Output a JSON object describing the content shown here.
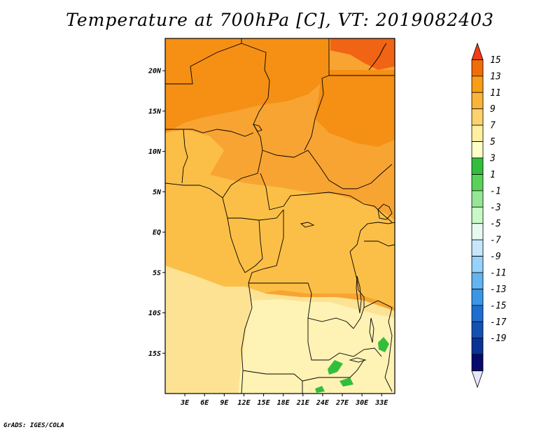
{
  "title": "Temperature at 700hPa [C], VT: 2019082403",
  "credit": "GrADS: IGES/COLA",
  "map": {
    "lon_range": [
      0,
      35
    ],
    "lat_range": [
      -20,
      24
    ],
    "lat_ticks": [
      {
        "value": 20,
        "label": "20N"
      },
      {
        "value": 15,
        "label": "15N"
      },
      {
        "value": 10,
        "label": "10N"
      },
      {
        "value": 5,
        "label": "5N"
      },
      {
        "value": 0,
        "label": "EQ"
      },
      {
        "value": -5,
        "label": "5S"
      },
      {
        "value": -10,
        "label": "10S"
      },
      {
        "value": -15,
        "label": "15S"
      }
    ],
    "lon_ticks": [
      {
        "value": 3,
        "label": "3E"
      },
      {
        "value": 6,
        "label": "6E"
      },
      {
        "value": 9,
        "label": "9E"
      },
      {
        "value": 12,
        "label": "12E"
      },
      {
        "value": 15,
        "label": "15E"
      },
      {
        "value": 18,
        "label": "18E"
      },
      {
        "value": 21,
        "label": "21E"
      },
      {
        "value": 24,
        "label": "24E"
      },
      {
        "value": 27,
        "label": "27E"
      },
      {
        "value": 30,
        "label": "30E"
      },
      {
        "value": 33,
        "label": "33E"
      }
    ]
  },
  "colorbar": {
    "labels": [
      "15",
      "13",
      "11",
      "9",
      "7",
      "5",
      "3",
      "1",
      "-1",
      "-3",
      "-5",
      "-7",
      "-9",
      "-11",
      "-13",
      "-15",
      "-17",
      "-19"
    ],
    "colors": [
      "#f03c14",
      "#f06e0a",
      "#f89e14",
      "#fab43c",
      "#fcd26e",
      "#fef0a0",
      "#fefec8",
      "#32be3c",
      "#5ad25a",
      "#96e696",
      "#c8fac8",
      "#e6faf0",
      "#c8e6fa",
      "#96d2fa",
      "#64b4f0",
      "#3c96e6",
      "#1e6ed2",
      "#1450b4",
      "#0a3296",
      "#060a6e",
      "#e6e6fa"
    ]
  },
  "colors": {
    "c13": "#f06414",
    "c11": "#f59014",
    "c9": "#f8a432",
    "c7": "#fbbf47",
    "c5": "#fde293",
    "c3": "#fef3b4",
    "green": "#32be3c"
  }
}
